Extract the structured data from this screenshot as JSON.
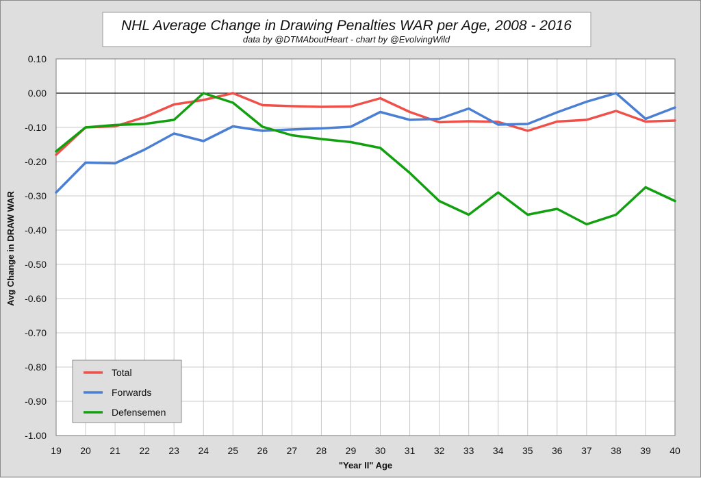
{
  "chart_data": {
    "type": "line",
    "title": "NHL Average Change in Drawing Penalties WAR per Age, 2008 - 2016",
    "subtitle": "data by @DTMAboutHeart  -  chart by @EvolvingWild",
    "xlabel": "\"Year II\" Age",
    "ylabel": "Avg Change in DRAW WAR",
    "x": [
      19,
      20,
      21,
      22,
      23,
      24,
      25,
      26,
      27,
      28,
      29,
      30,
      31,
      32,
      33,
      34,
      35,
      36,
      37,
      38,
      39,
      40
    ],
    "xlim": [
      19,
      40
    ],
    "ylim": [
      -1.0,
      0.1
    ],
    "yticks": [
      "0.10",
      "0.00",
      "-0.10",
      "-0.20",
      "-0.30",
      "-0.40",
      "-0.50",
      "-0.60",
      "-0.70",
      "-0.80",
      "-0.90",
      "-1.00"
    ],
    "xticks": [
      "19",
      "20",
      "21",
      "22",
      "23",
      "24",
      "25",
      "26",
      "27",
      "28",
      "29",
      "30",
      "31",
      "32",
      "33",
      "34",
      "35",
      "36",
      "37",
      "38",
      "39",
      "40"
    ],
    "grid": true,
    "legend_position": "bottom-left",
    "series": [
      {
        "name": "Total",
        "color": "#f0504a",
        "values": [
          -0.18,
          -0.1,
          -0.097,
          -0.07,
          -0.033,
          -0.02,
          0.0,
          -0.035,
          -0.038,
          -0.04,
          -0.039,
          -0.015,
          -0.055,
          -0.085,
          -0.082,
          -0.084,
          -0.11,
          -0.083,
          -0.078,
          -0.052,
          -0.083,
          -0.08
        ]
      },
      {
        "name": "Forwards",
        "color": "#4a7fd4",
        "values": [
          -0.29,
          -0.203,
          -0.205,
          -0.165,
          -0.118,
          -0.14,
          -0.097,
          -0.11,
          -0.106,
          -0.103,
          -0.098,
          -0.055,
          -0.078,
          -0.075,
          -0.045,
          -0.092,
          -0.09,
          -0.056,
          -0.025,
          0.0,
          -0.075,
          -0.042
        ]
      },
      {
        "name": "Defensemen",
        "color": "#12a010",
        "values": [
          -0.17,
          -0.1,
          -0.093,
          -0.09,
          -0.078,
          0.0,
          -0.028,
          -0.098,
          -0.123,
          -0.134,
          -0.143,
          -0.16,
          -0.233,
          -0.315,
          -0.355,
          -0.29,
          -0.355,
          -0.338,
          -0.383,
          -0.355,
          -0.275,
          -0.315
        ]
      }
    ]
  }
}
